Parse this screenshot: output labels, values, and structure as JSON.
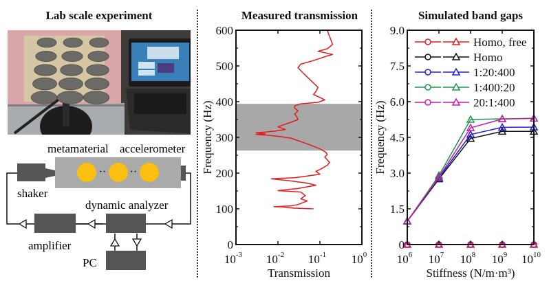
{
  "panels": {
    "left": {
      "title": "Lab scale experiment",
      "diagram_labels": {
        "metamaterial": "metamaterial",
        "accelerometer": "accelerometer",
        "shaker": "shaker",
        "dynamic_analyzer": "dynamic analyzer",
        "amplifier": "amplifier",
        "pc": "PC",
        "dots": "··"
      },
      "colors": {
        "box": "#555555",
        "metamaterial": "#aaaaaa",
        "inclusion": "#fbbf10"
      }
    },
    "middle": {
      "title": "Measured transmission"
    },
    "right": {
      "title": "Simulated band gaps"
    }
  },
  "chart_data": [
    {
      "type": "line",
      "title": "Measured transmission",
      "xlabel": "Transmission",
      "ylabel": "Frequency (Hz)",
      "xscale": "log",
      "xlim": [
        0.001,
        1
      ],
      "ylim": [
        0,
        600
      ],
      "xticks": [
        {
          "base": "10",
          "exp": "-3"
        },
        {
          "base": "10",
          "exp": "-2"
        },
        {
          "base": "10",
          "exp": "-1"
        },
        {
          "base": "10",
          "exp": "0"
        }
      ],
      "yticks": [
        "0",
        "100",
        "200",
        "300",
        "400",
        "500",
        "600"
      ],
      "band_gap_shading": {
        "from_hz": 263,
        "to_hz": 394,
        "color": "#a8a8a8"
      },
      "series": [
        {
          "name": "transmission",
          "color": "#e41a1c",
          "points": [
            [
              0.07,
              100
            ],
            [
              0.025,
              102
            ],
            [
              0.008,
              106
            ],
            [
              0.02,
              108
            ],
            [
              0.03,
              112
            ],
            [
              0.05,
              122
            ],
            [
              0.035,
              128
            ],
            [
              0.045,
              137
            ],
            [
              0.04,
              142
            ],
            [
              0.035,
              147
            ],
            [
              0.01,
              151
            ],
            [
              0.03,
              157
            ],
            [
              0.08,
              166
            ],
            [
              0.05,
              172
            ],
            [
              0.02,
              178
            ],
            [
              0.007,
              184
            ],
            [
              0.025,
              187
            ],
            [
              0.05,
              192
            ],
            [
              0.1,
              197
            ],
            [
              0.08,
              205
            ],
            [
              0.1,
              210
            ],
            [
              0.15,
              222
            ],
            [
              0.17,
              230
            ],
            [
              0.13,
              245
            ],
            [
              0.15,
              252
            ],
            [
              0.14,
              258
            ],
            [
              0.1,
              268
            ],
            [
              0.05,
              282
            ],
            [
              0.02,
              298
            ],
            [
              0.015,
              300
            ],
            [
              0.012,
              302
            ],
            [
              0.006,
              306
            ],
            [
              0.003,
              308
            ],
            [
              0.005,
              310
            ],
            [
              0.003,
              313
            ],
            [
              0.005,
              315
            ],
            [
              0.009,
              318
            ],
            [
              0.015,
              322
            ],
            [
              0.01,
              330
            ],
            [
              0.02,
              342
            ],
            [
              0.03,
              350
            ],
            [
              0.028,
              358
            ],
            [
              0.025,
              365
            ],
            [
              0.03,
              375
            ],
            [
              0.025,
              382
            ],
            [
              0.025,
              388
            ],
            [
              0.035,
              394
            ],
            [
              0.09,
              398
            ],
            [
              0.13,
              405
            ],
            [
              0.1,
              412
            ],
            [
              0.07,
              420
            ],
            [
              0.08,
              428
            ],
            [
              0.09,
              440
            ],
            [
              0.06,
              460
            ],
            [
              0.04,
              480
            ],
            [
              0.03,
              495
            ],
            [
              0.035,
              505
            ],
            [
              0.07,
              515
            ],
            [
              0.15,
              528
            ],
            [
              0.2,
              532
            ],
            [
              0.12,
              538
            ],
            [
              0.09,
              541
            ],
            [
              0.15,
              548
            ],
            [
              0.2,
              560
            ],
            [
              0.18,
              575
            ],
            [
              0.16,
              590
            ],
            [
              0.15,
              600
            ]
          ]
        }
      ]
    },
    {
      "type": "line",
      "title": "Simulated band gaps",
      "xlabel": "Stiffness (N/m·m³)",
      "ylabel": "Frequency (Hz)",
      "xscale": "log",
      "xlim": [
        1000000,
        10000000000
      ],
      "ylim": [
        0,
        9
      ],
      "x": [
        6,
        7,
        8,
        9,
        10
      ],
      "xticks": [
        {
          "base": "10",
          "exp": "6"
        },
        {
          "base": "10",
          "exp": "7"
        },
        {
          "base": "10",
          "exp": "8"
        },
        {
          "base": "10",
          "exp": "9"
        },
        {
          "base": "10",
          "exp": "10"
        }
      ],
      "yticks": [
        "0",
        "1.5",
        "3.0",
        "4.5",
        "6.0",
        "7.5",
        "9.0"
      ],
      "legend_position": "top-left",
      "series": [
        {
          "name": "Homo, free",
          "color": "#e41a1c",
          "lower": [
            0,
            0,
            0,
            0,
            0
          ],
          "upper": [
            0,
            0,
            0,
            0,
            0
          ]
        },
        {
          "name": "Homo",
          "color": "#111111",
          "lower": [
            0,
            0,
            0,
            0,
            0
          ],
          "upper": [
            0.98,
            2.75,
            4.45,
            4.75,
            4.75
          ]
        },
        {
          "name": "1:20:400",
          "color": "#1f1fd0",
          "lower": [
            0,
            0,
            0,
            0,
            0
          ],
          "upper": [
            0.98,
            2.8,
            4.62,
            4.92,
            4.93
          ]
        },
        {
          "name": "1:400:20",
          "color": "#1a9850",
          "lower": [
            0,
            0,
            0,
            0,
            0
          ],
          "upper": [
            0.98,
            2.9,
            5.25,
            5.28,
            5.3
          ]
        },
        {
          "name": "20:1:400",
          "color": "#c21ba8",
          "lower": [
            0,
            0,
            0,
            0,
            0
          ],
          "upper": [
            0.98,
            2.83,
            4.9,
            5.27,
            5.3
          ]
        }
      ]
    }
  ]
}
